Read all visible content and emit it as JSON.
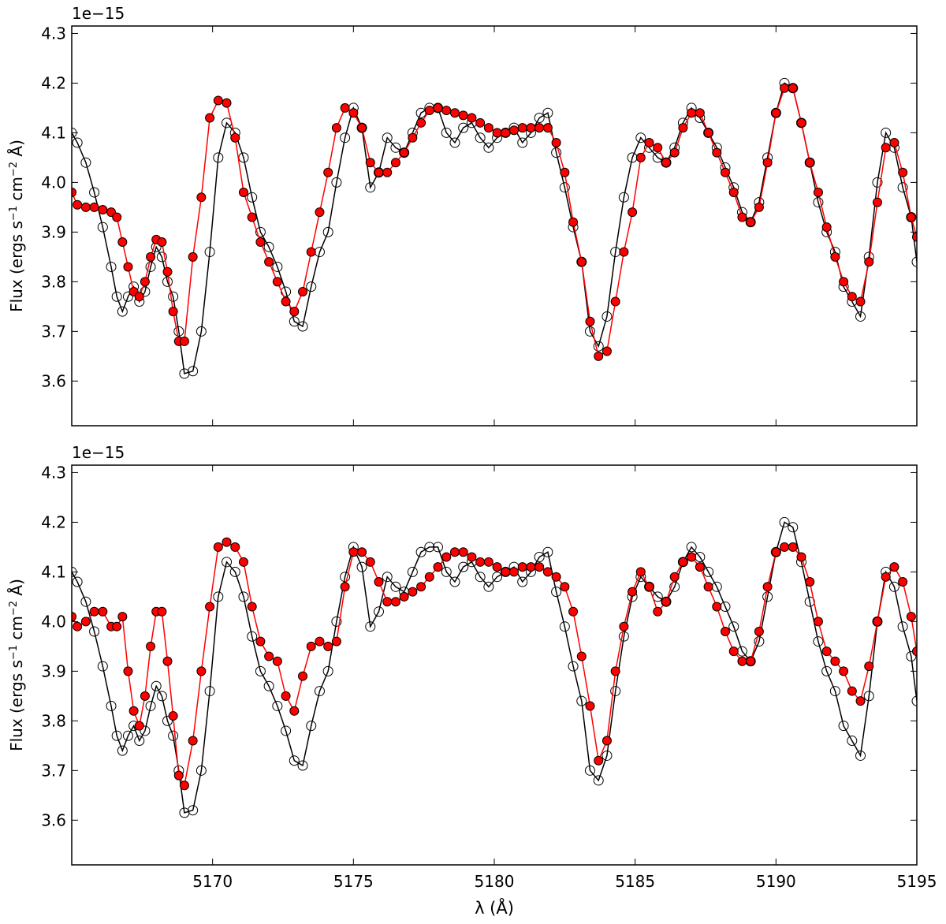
{
  "chart_data": [
    {
      "type": "line",
      "panel": "top",
      "offset_label": "1e−15",
      "ylabel_main": "Flux (ergs s",
      "ylabel_sup1": "−1",
      "ylabel_mid": " cm",
      "ylabel_sup2": "−2",
      "ylabel_end": " Å)",
      "xlim": [
        5165,
        5195
      ],
      "ylim": [
        3.51,
        4.315
      ],
      "yticks": [
        "3.6",
        "3.7",
        "3.8",
        "3.9",
        "4.0",
        "4.1",
        "4.2",
        "4.3"
      ],
      "xticks": [
        5170,
        5175,
        5180,
        5185,
        5190,
        5195
      ],
      "grid": false,
      "series": [
        {
          "color": "#000000",
          "marker": "open-circle",
          "x": [
            5165.0,
            5165.2,
            5165.5,
            5165.8,
            5166.1,
            5166.4,
            5166.6,
            5166.8,
            5167.0,
            5167.2,
            5167.4,
            5167.6,
            5167.8,
            5168.0,
            5168.2,
            5168.4,
            5168.6,
            5168.8,
            5169.0,
            5169.3,
            5169.6,
            5169.9,
            5170.2,
            5170.5,
            5170.8,
            5171.1,
            5171.4,
            5171.7,
            5172.0,
            5172.3,
            5172.6,
            5172.9,
            5173.2,
            5173.5,
            5173.8,
            5174.1,
            5174.4,
            5174.7,
            5175.0,
            5175.3,
            5175.6,
            5175.9,
            5176.2,
            5176.5,
            5176.8,
            5177.1,
            5177.4,
            5177.7,
            5178.0,
            5178.3,
            5178.6,
            5178.9,
            5179.2,
            5179.5,
            5179.8,
            5180.1,
            5180.4,
            5180.7,
            5181.0,
            5181.3,
            5181.6,
            5181.9,
            5182.2,
            5182.5,
            5182.8,
            5183.1,
            5183.4,
            5183.7,
            5184.0,
            5184.3,
            5184.6,
            5184.9,
            5185.2,
            5185.5,
            5185.8,
            5186.1,
            5186.4,
            5186.7,
            5187.0,
            5187.3,
            5187.6,
            5187.9,
            5188.2,
            5188.5,
            5188.8,
            5189.1,
            5189.4,
            5189.7,
            5190.0,
            5190.3,
            5190.6,
            5190.9,
            5191.2,
            5191.5,
            5191.8,
            5192.1,
            5192.4,
            5192.7,
            5193.0,
            5193.3,
            5193.6,
            5193.9,
            5194.2,
            5194.5,
            5194.8,
            5195.0
          ],
          "y": [
            4.1,
            4.08,
            4.04,
            3.98,
            3.91,
            3.83,
            3.77,
            3.74,
            3.77,
            3.79,
            3.76,
            3.78,
            3.83,
            3.87,
            3.85,
            3.8,
            3.77,
            3.7,
            3.615,
            3.62,
            3.7,
            3.86,
            4.05,
            4.12,
            4.1,
            4.05,
            3.97,
            3.9,
            3.87,
            3.83,
            3.78,
            3.72,
            3.71,
            3.79,
            3.86,
            3.9,
            4.0,
            4.09,
            4.15,
            4.11,
            3.99,
            4.02,
            4.09,
            4.07,
            4.06,
            4.1,
            4.14,
            4.15,
            4.15,
            4.1,
            4.08,
            4.11,
            4.12,
            4.09,
            4.07,
            4.09,
            4.1,
            4.11,
            4.08,
            4.1,
            4.13,
            4.14,
            4.06,
            3.99,
            3.91,
            3.84,
            3.7,
            3.67,
            3.73,
            3.86,
            3.97,
            4.05,
            4.09,
            4.07,
            4.05,
            4.04,
            4.07,
            4.12,
            4.15,
            4.13,
            4.1,
            4.07,
            4.03,
            3.99,
            3.94,
            3.92,
            3.96,
            4.05,
            4.14,
            4.2,
            4.19,
            4.12,
            4.04,
            3.96,
            3.9,
            3.86,
            3.79,
            3.76,
            3.73,
            3.85,
            4.0,
            4.1,
            4.07,
            3.99,
            3.93,
            3.84
          ]
        },
        {
          "color": "#ff0000",
          "marker": "filled-circle",
          "x": [
            5165.0,
            5165.2,
            5165.5,
            5165.8,
            5166.1,
            5166.4,
            5166.6,
            5166.8,
            5167.0,
            5167.2,
            5167.4,
            5167.6,
            5167.8,
            5168.0,
            5168.2,
            5168.4,
            5168.6,
            5168.8,
            5169.0,
            5169.3,
            5169.6,
            5169.9,
            5170.2,
            5170.5,
            5170.8,
            5171.1,
            5171.4,
            5171.7,
            5172.0,
            5172.3,
            5172.6,
            5172.9,
            5173.2,
            5173.5,
            5173.8,
            5174.1,
            5174.4,
            5174.7,
            5175.0,
            5175.3,
            5175.6,
            5175.9,
            5176.2,
            5176.5,
            5176.8,
            5177.1,
            5177.4,
            5177.7,
            5178.0,
            5178.3,
            5178.6,
            5178.9,
            5179.2,
            5179.5,
            5179.8,
            5180.1,
            5180.4,
            5180.7,
            5181.0,
            5181.3,
            5181.6,
            5181.9,
            5182.2,
            5182.5,
            5182.8,
            5183.1,
            5183.4,
            5183.7,
            5184.0,
            5184.3,
            5184.6,
            5184.9,
            5185.2,
            5185.5,
            5185.8,
            5186.1,
            5186.4,
            5186.7,
            5187.0,
            5187.3,
            5187.6,
            5187.9,
            5188.2,
            5188.5,
            5188.8,
            5189.1,
            5189.4,
            5189.7,
            5190.0,
            5190.3,
            5190.6,
            5190.9,
            5191.2,
            5191.5,
            5191.8,
            5192.1,
            5192.4,
            5192.7,
            5193.0,
            5193.3,
            5193.6,
            5193.9,
            5194.2,
            5194.5,
            5194.8,
            5195.0
          ],
          "y": [
            3.98,
            3.955,
            3.95,
            3.95,
            3.945,
            3.94,
            3.93,
            3.88,
            3.83,
            3.78,
            3.77,
            3.8,
            3.85,
            3.885,
            3.88,
            3.82,
            3.74,
            3.68,
            3.68,
            3.85,
            3.97,
            4.13,
            4.165,
            4.16,
            4.09,
            3.98,
            3.93,
            3.88,
            3.84,
            3.8,
            3.76,
            3.74,
            3.78,
            3.86,
            3.94,
            4.02,
            4.11,
            4.15,
            4.14,
            4.11,
            4.04,
            4.02,
            4.02,
            4.04,
            4.06,
            4.09,
            4.12,
            4.145,
            4.15,
            4.145,
            4.14,
            4.135,
            4.13,
            4.12,
            4.11,
            4.1,
            4.1,
            4.105,
            4.11,
            4.11,
            4.11,
            4.11,
            4.08,
            4.02,
            3.92,
            3.84,
            3.72,
            3.65,
            3.66,
            3.76,
            3.86,
            3.94,
            4.05,
            4.08,
            4.07,
            4.04,
            4.06,
            4.11,
            4.14,
            4.14,
            4.1,
            4.06,
            4.02,
            3.98,
            3.93,
            3.92,
            3.95,
            4.04,
            4.14,
            4.19,
            4.19,
            4.12,
            4.04,
            3.98,
            3.91,
            3.85,
            3.8,
            3.77,
            3.76,
            3.84,
            3.96,
            4.07,
            4.08,
            4.02,
            3.93,
            3.89
          ]
        }
      ]
    },
    {
      "type": "line",
      "panel": "bottom",
      "offset_label": "1e−15",
      "ylabel_main": "Flux (ergs s",
      "ylabel_sup1": "−1",
      "ylabel_mid": " cm",
      "ylabel_sup2": "−2",
      "ylabel_end": " Å)",
      "xlabel": "λ (Å)",
      "xlim": [
        5165,
        5195
      ],
      "ylim": [
        3.51,
        4.315
      ],
      "yticks": [
        "3.6",
        "3.7",
        "3.8",
        "3.9",
        "4.0",
        "4.1",
        "4.2",
        "4.3"
      ],
      "xticks": [
        5170,
        5175,
        5180,
        5185,
        5190,
        5195
      ],
      "xticklabels": [
        "5170",
        "5175",
        "5180",
        "5185",
        "5190",
        "5195"
      ],
      "grid": false,
      "series": [
        {
          "color": "#000000",
          "marker": "open-circle",
          "x": [
            5165.0,
            5165.2,
            5165.5,
            5165.8,
            5166.1,
            5166.4,
            5166.6,
            5166.8,
            5167.0,
            5167.2,
            5167.4,
            5167.6,
            5167.8,
            5168.0,
            5168.2,
            5168.4,
            5168.6,
            5168.8,
            5169.0,
            5169.3,
            5169.6,
            5169.9,
            5170.2,
            5170.5,
            5170.8,
            5171.1,
            5171.4,
            5171.7,
            5172.0,
            5172.3,
            5172.6,
            5172.9,
            5173.2,
            5173.5,
            5173.8,
            5174.1,
            5174.4,
            5174.7,
            5175.0,
            5175.3,
            5175.6,
            5175.9,
            5176.2,
            5176.5,
            5176.8,
            5177.1,
            5177.4,
            5177.7,
            5178.0,
            5178.3,
            5178.6,
            5178.9,
            5179.2,
            5179.5,
            5179.8,
            5180.1,
            5180.4,
            5180.7,
            5181.0,
            5181.3,
            5181.6,
            5181.9,
            5182.2,
            5182.5,
            5182.8,
            5183.1,
            5183.4,
            5183.7,
            5184.0,
            5184.3,
            5184.6,
            5184.9,
            5185.2,
            5185.5,
            5185.8,
            5186.1,
            5186.4,
            5186.7,
            5187.0,
            5187.3,
            5187.6,
            5187.9,
            5188.2,
            5188.5,
            5188.8,
            5189.1,
            5189.4,
            5189.7,
            5190.0,
            5190.3,
            5190.6,
            5190.9,
            5191.2,
            5191.5,
            5191.8,
            5192.1,
            5192.4,
            5192.7,
            5193.0,
            5193.3,
            5193.6,
            5193.9,
            5194.2,
            5194.5,
            5194.8,
            5195.0
          ],
          "y": [
            4.1,
            4.08,
            4.04,
            3.98,
            3.91,
            3.83,
            3.77,
            3.74,
            3.77,
            3.79,
            3.76,
            3.78,
            3.83,
            3.87,
            3.85,
            3.8,
            3.77,
            3.7,
            3.615,
            3.62,
            3.7,
            3.86,
            4.05,
            4.12,
            4.1,
            4.05,
            3.97,
            3.9,
            3.87,
            3.83,
            3.78,
            3.72,
            3.71,
            3.79,
            3.86,
            3.9,
            4.0,
            4.09,
            4.15,
            4.11,
            3.99,
            4.02,
            4.09,
            4.07,
            4.06,
            4.1,
            4.14,
            4.15,
            4.15,
            4.1,
            4.08,
            4.11,
            4.12,
            4.09,
            4.07,
            4.09,
            4.1,
            4.11,
            4.08,
            4.1,
            4.13,
            4.14,
            4.06,
            3.99,
            3.91,
            3.84,
            3.7,
            3.68,
            3.73,
            3.86,
            3.97,
            4.05,
            4.09,
            4.07,
            4.05,
            4.04,
            4.07,
            4.12,
            4.15,
            4.13,
            4.1,
            4.07,
            4.03,
            3.99,
            3.94,
            3.92,
            3.96,
            4.05,
            4.14,
            4.2,
            4.19,
            4.12,
            4.04,
            3.96,
            3.9,
            3.86,
            3.79,
            3.76,
            3.73,
            3.85,
            4.0,
            4.1,
            4.07,
            3.99,
            3.93,
            3.84
          ]
        },
        {
          "color": "#ff0000",
          "marker": "filled-circle",
          "x": [
            5165.0,
            5165.2,
            5165.5,
            5165.8,
            5166.1,
            5166.4,
            5166.6,
            5166.8,
            5167.0,
            5167.2,
            5167.4,
            5167.6,
            5167.8,
            5168.0,
            5168.2,
            5168.4,
            5168.6,
            5168.8,
            5169.0,
            5169.3,
            5169.6,
            5169.9,
            5170.2,
            5170.5,
            5170.8,
            5171.1,
            5171.4,
            5171.7,
            5172.0,
            5172.3,
            5172.6,
            5172.9,
            5173.2,
            5173.5,
            5173.8,
            5174.1,
            5174.4,
            5174.7,
            5175.0,
            5175.3,
            5175.6,
            5175.9,
            5176.2,
            5176.5,
            5176.8,
            5177.1,
            5177.4,
            5177.7,
            5178.0,
            5178.3,
            5178.6,
            5178.9,
            5179.2,
            5179.5,
            5179.8,
            5180.1,
            5180.4,
            5180.7,
            5181.0,
            5181.3,
            5181.6,
            5181.9,
            5182.2,
            5182.5,
            5182.8,
            5183.1,
            5183.4,
            5183.7,
            5184.0,
            5184.3,
            5184.6,
            5184.9,
            5185.2,
            5185.5,
            5185.8,
            5186.1,
            5186.4,
            5186.7,
            5187.0,
            5187.3,
            5187.6,
            5187.9,
            5188.2,
            5188.5,
            5188.8,
            5189.1,
            5189.4,
            5189.7,
            5190.0,
            5190.3,
            5190.6,
            5190.9,
            5191.2,
            5191.5,
            5191.8,
            5192.1,
            5192.4,
            5192.7,
            5193.0,
            5193.3,
            5193.6,
            5193.9,
            5194.2,
            5194.5,
            5194.8,
            5195.0
          ],
          "y": [
            4.01,
            3.99,
            4.0,
            4.02,
            4.02,
            3.99,
            3.99,
            4.01,
            3.9,
            3.82,
            3.79,
            3.85,
            3.95,
            4.02,
            4.02,
            3.92,
            3.81,
            3.69,
            3.67,
            3.76,
            3.9,
            4.03,
            4.15,
            4.16,
            4.15,
            4.12,
            4.03,
            3.96,
            3.93,
            3.92,
            3.85,
            3.82,
            3.89,
            3.95,
            3.96,
            3.95,
            3.96,
            4.07,
            4.14,
            4.14,
            4.12,
            4.08,
            4.04,
            4.04,
            4.05,
            4.06,
            4.07,
            4.09,
            4.11,
            4.13,
            4.14,
            4.14,
            4.13,
            4.12,
            4.12,
            4.11,
            4.1,
            4.1,
            4.11,
            4.11,
            4.11,
            4.1,
            4.09,
            4.07,
            4.02,
            3.93,
            3.83,
            3.72,
            3.76,
            3.9,
            3.99,
            4.06,
            4.1,
            4.07,
            4.02,
            4.04,
            4.09,
            4.12,
            4.13,
            4.11,
            4.07,
            4.03,
            3.98,
            3.94,
            3.92,
            3.92,
            3.98,
            4.07,
            4.14,
            4.15,
            4.15,
            4.13,
            4.08,
            4.0,
            3.94,
            3.92,
            3.9,
            3.86,
            3.84,
            3.91,
            4.0,
            4.09,
            4.11,
            4.08,
            4.01,
            3.94
          ]
        }
      ]
    }
  ]
}
